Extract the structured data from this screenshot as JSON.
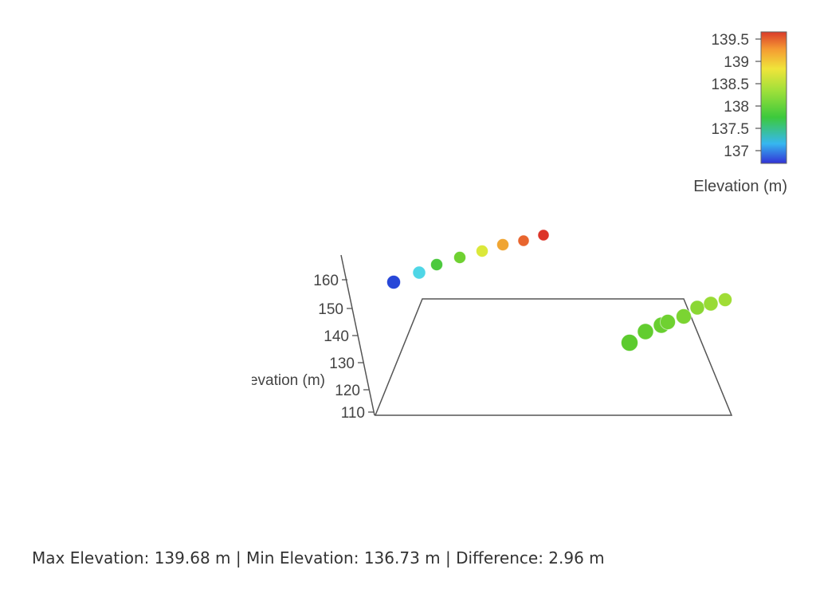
{
  "chart_data": {
    "type": "scatter3d",
    "z_axis": {
      "label": "Elevation (m)",
      "ticks": [
        110,
        120,
        130,
        140,
        150,
        160
      ],
      "range": [
        110,
        165
      ]
    },
    "colorbar": {
      "title": "Elevation (m)",
      "ticks": [
        "137",
        "137.5",
        "138",
        "138.5",
        "139",
        "139.5"
      ],
      "range": [
        136.73,
        139.68
      ],
      "colors": [
        "#3232d6",
        "#36b7f0",
        "#3cc93c",
        "#9ee03a",
        "#f0e43a",
        "#f59a32",
        "#d93a2a"
      ]
    },
    "series": [
      {
        "points": [
          {
            "elevation": 136.73,
            "color": "#2747d8"
          },
          {
            "elevation": 137.4,
            "color": "#4fd6e6"
          },
          {
            "elevation": 137.9,
            "color": "#4cc93e"
          },
          {
            "elevation": 138.2,
            "color": "#6fd131"
          },
          {
            "elevation": 138.9,
            "color": "#dbe83a"
          },
          {
            "elevation": 139.2,
            "color": "#f0a532"
          },
          {
            "elevation": 139.4,
            "color": "#e8652e"
          },
          {
            "elevation": 139.68,
            "color": "#dc3428"
          }
        ]
      },
      {
        "points": [
          {
            "elevation": 138.1,
            "color": "#5ccb2e"
          },
          {
            "elevation": 138.2,
            "color": "#62cd2f"
          },
          {
            "elevation": 138.25,
            "color": "#68cf30"
          },
          {
            "elevation": 138.3,
            "color": "#6fd131"
          },
          {
            "elevation": 138.4,
            "color": "#7bd432"
          },
          {
            "elevation": 138.5,
            "color": "#8ad733"
          },
          {
            "elevation": 138.6,
            "color": "#98db35"
          },
          {
            "elevation": 138.65,
            "color": "#a0dd36"
          }
        ]
      }
    ]
  },
  "summary": "Max Elevation: 139.68 m | Min Elevation: 136.73 m | Difference: 2.96 m"
}
